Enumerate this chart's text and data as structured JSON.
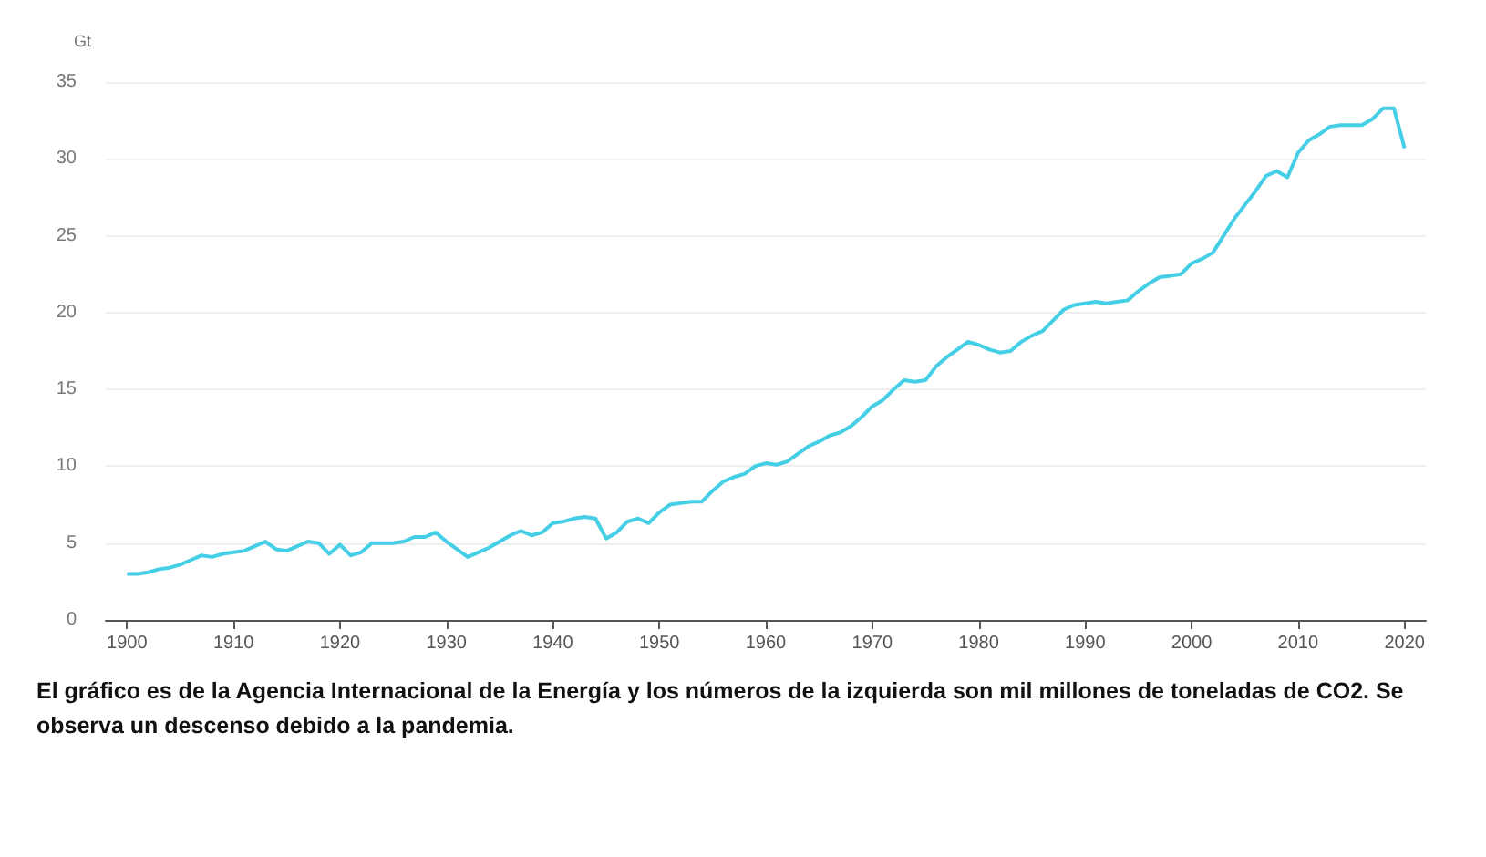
{
  "chart_data": {
    "type": "line",
    "ylabel": "Gt",
    "annotations": [
      "El gráfico es de la Agencia Internacional de la Energía y los números de la izquierda son mil millones de toneladas de CO2. Se observa un descenso debido a la pandemia."
    ],
    "x": [
      1900,
      1901,
      1902,
      1903,
      1904,
      1905,
      1906,
      1907,
      1908,
      1909,
      1910,
      1911,
      1912,
      1913,
      1914,
      1915,
      1916,
      1917,
      1918,
      1919,
      1920,
      1921,
      1922,
      1923,
      1924,
      1925,
      1926,
      1927,
      1928,
      1929,
      1930,
      1931,
      1932,
      1933,
      1934,
      1935,
      1936,
      1937,
      1938,
      1939,
      1940,
      1941,
      1942,
      1943,
      1944,
      1945,
      1946,
      1947,
      1948,
      1949,
      1950,
      1951,
      1952,
      1953,
      1954,
      1955,
      1956,
      1957,
      1958,
      1959,
      1960,
      1961,
      1962,
      1963,
      1964,
      1965,
      1966,
      1967,
      1968,
      1969,
      1970,
      1971,
      1972,
      1973,
      1974,
      1975,
      1976,
      1977,
      1978,
      1979,
      1980,
      1981,
      1982,
      1983,
      1984,
      1985,
      1986,
      1987,
      1988,
      1989,
      1990,
      1991,
      1992,
      1993,
      1994,
      1995,
      1996,
      1997,
      1998,
      1999,
      2000,
      2001,
      2002,
      2003,
      2004,
      2005,
      2006,
      2007,
      2008,
      2009,
      2010,
      2011,
      2012,
      2013,
      2014,
      2015,
      2016,
      2017,
      2018,
      2019,
      2020
    ],
    "series": [
      {
        "color": "#45cfe6",
        "values": [
          3.0,
          3.0,
          3.1,
          3.3,
          3.4,
          3.6,
          3.9,
          4.2,
          4.1,
          4.3,
          4.4,
          4.5,
          4.8,
          5.1,
          4.6,
          4.5,
          4.8,
          5.1,
          5.0,
          4.3,
          4.9,
          4.2,
          4.4,
          5.0,
          5.0,
          5.0,
          5.1,
          5.4,
          5.4,
          5.7,
          5.1,
          4.6,
          4.1,
          4.4,
          4.7,
          5.1,
          5.5,
          5.8,
          5.5,
          5.7,
          6.3,
          6.4,
          6.6,
          6.7,
          6.6,
          5.3,
          5.7,
          6.4,
          6.6,
          6.3,
          7.0,
          7.5,
          7.6,
          7.7,
          7.7,
          8.4,
          9.0,
          9.3,
          9.5,
          10.0,
          10.2,
          10.1,
          10.3,
          10.8,
          11.3,
          11.6,
          12.0,
          12.2,
          12.6,
          13.2,
          13.9,
          14.3,
          15.0,
          15.6,
          15.5,
          15.6,
          16.5,
          17.1,
          17.6,
          18.1,
          17.9,
          17.6,
          17.4,
          17.5,
          18.1,
          18.5,
          18.8,
          19.5,
          20.2,
          20.5,
          20.6,
          20.7,
          20.6,
          20.7,
          20.8,
          21.4,
          21.9,
          22.3,
          22.4,
          22.5,
          23.2,
          23.5,
          23.9,
          25.0,
          26.1,
          27.0,
          27.9,
          28.9,
          29.2,
          28.8,
          30.4,
          31.2,
          31.6,
          32.1,
          32.2,
          32.2,
          32.2,
          32.6,
          33.3,
          33.3,
          30.7
        ]
      }
    ],
    "xlim": [
      1898,
      2022
    ],
    "xticks": [
      1900,
      1910,
      1920,
      1930,
      1940,
      1950,
      1960,
      1970,
      1980,
      1990,
      2000,
      2010,
      2020
    ],
    "ylim": [
      0,
      35
    ],
    "yticks": [
      0,
      5,
      10,
      15,
      20,
      25,
      30,
      35
    ],
    "grid": "y",
    "marker": "none",
    "line_style": "solid"
  }
}
